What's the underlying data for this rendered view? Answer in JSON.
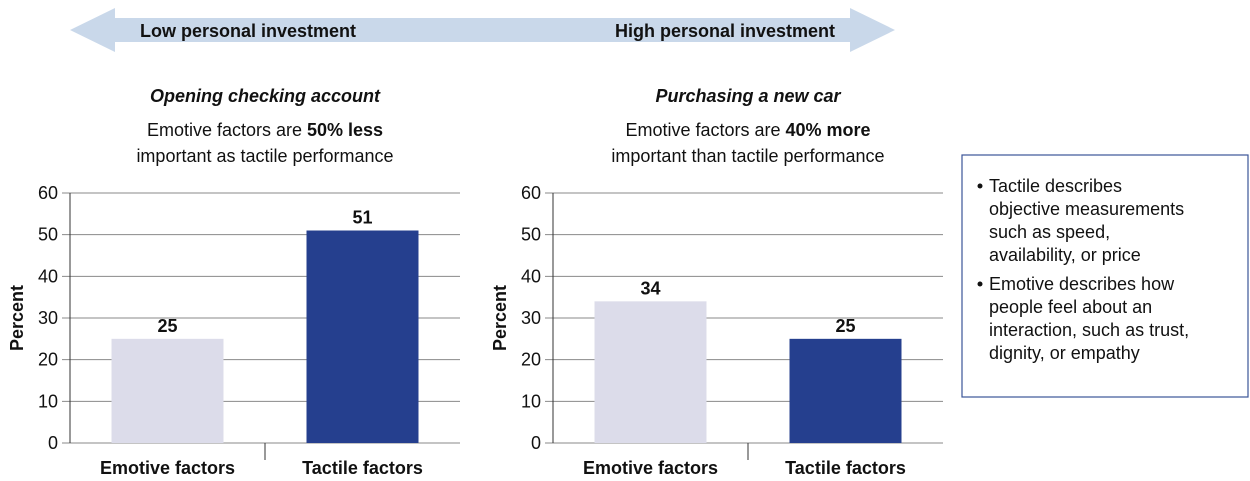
{
  "header": {
    "left": "Low personal investment",
    "right": "High personal investment"
  },
  "chart_data": [
    {
      "type": "bar",
      "title": "Opening checking account",
      "subtitle": [
        "Emotive factors are",
        "50% less",
        "important as tactile performance"
      ],
      "ylabel": "Percent",
      "categories": [
        "Emotive factors",
        "Tactile factors"
      ],
      "values": [
        25,
        51
      ],
      "colors": [
        "#dcdcea",
        "#253f8e"
      ],
      "ylim": [
        0,
        60
      ],
      "yticks": [
        0,
        10,
        20,
        30,
        40,
        50,
        60
      ],
      "grid": true
    },
    {
      "type": "bar",
      "title": "Purchasing a new car",
      "subtitle": [
        "Emotive factors are",
        "40% more",
        "important than tactile performance"
      ],
      "ylabel": "Percent",
      "categories": [
        "Emotive factors",
        "Tactile factors"
      ],
      "values": [
        34,
        25
      ],
      "colors": [
        "#dcdcea",
        "#253f8e"
      ],
      "ylim": [
        0,
        60
      ],
      "yticks": [
        0,
        10,
        20,
        30,
        40,
        50,
        60
      ],
      "grid": true
    }
  ],
  "notes": [
    [
      "Tactile describes",
      "objective measurements",
      "such as speed,",
      "availability, or price"
    ],
    [
      "Emotive describes how",
      "people feel about an",
      "interaction, such as trust,",
      "dignity, or empathy"
    ]
  ]
}
